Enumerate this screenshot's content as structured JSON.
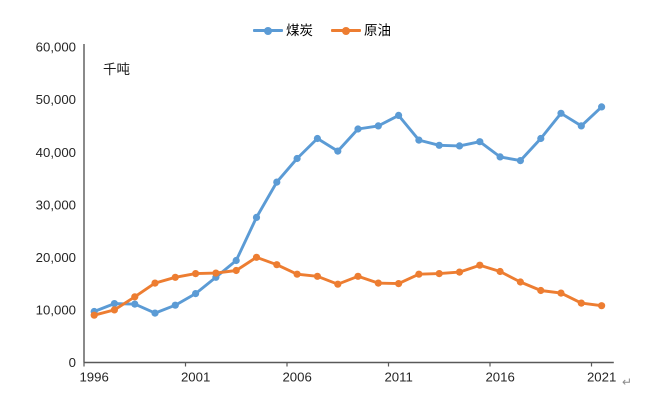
{
  "page": {
    "paragraph_mark": "↵"
  },
  "chart_data": {
    "type": "line",
    "title": "",
    "unit_label": "千吨",
    "xlabel": "",
    "ylabel": "千吨",
    "x": [
      1996,
      1997,
      1998,
      1999,
      2000,
      2001,
      2002,
      2003,
      2004,
      2005,
      2006,
      2007,
      2008,
      2009,
      2010,
      2011,
      2012,
      2013,
      2014,
      2015,
      2016,
      2017,
      2018,
      2019,
      2020,
      2021
    ],
    "series": [
      {
        "name": "煤炭",
        "color": "#5B9BD5",
        "values": [
          9700,
          11200,
          11100,
          9400,
          10900,
          13100,
          16200,
          19400,
          27600,
          34300,
          38800,
          42600,
          40200,
          44400,
          45000,
          47000,
          42300,
          41300,
          41200,
          42000,
          39100,
          38400,
          42600,
          47400,
          45000,
          48600
        ]
      },
      {
        "name": "原油",
        "color": "#ED7D31",
        "values": [
          9000,
          10000,
          12500,
          15100,
          16200,
          16900,
          17000,
          17500,
          20000,
          18600,
          16800,
          16400,
          14900,
          16400,
          15100,
          15000,
          16800,
          16900,
          17200,
          18500,
          17300,
          15300,
          13700,
          13200,
          11300,
          10800
        ]
      }
    ],
    "ylim": [
      0,
      60000
    ],
    "y_ticks": [
      0,
      10000,
      20000,
      30000,
      40000,
      50000,
      60000
    ],
    "y_tick_labels": [
      "0",
      "10,000",
      "20,000",
      "30,000",
      "40,000",
      "50,000",
      "60,000"
    ],
    "x_tick_labels": [
      "1996",
      "2001",
      "2006",
      "2011",
      "2016",
      "2021"
    ],
    "x_label_interval": 5,
    "legend_position": "top-center",
    "grid": "off",
    "markers": true,
    "axis_color": "#595959",
    "tick_text_color": "#262626"
  }
}
